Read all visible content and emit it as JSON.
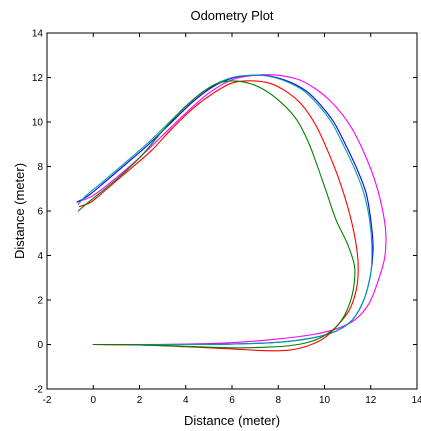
{
  "chart_data": {
    "type": "line",
    "title": "Odometry Plot",
    "xlabel": "Distance (meter)",
    "ylabel": "Distance (meter)",
    "xlim": [
      -2,
      14
    ],
    "ylim": [
      -2,
      14
    ],
    "xticks": [
      -2,
      0,
      2,
      4,
      6,
      8,
      10,
      12,
      14
    ],
    "yticks": [
      -2,
      0,
      2,
      4,
      6,
      8,
      10,
      12,
      14
    ],
    "grid": false,
    "series": [
      {
        "color": "#ff00ff",
        "x": [
          0,
          2,
          4,
          6,
          8,
          9.5,
          10.5,
          11.3,
          11.9,
          12.3,
          12.6,
          12.65,
          12.5,
          12.2,
          11.8,
          11.3,
          10.8,
          10.2,
          9.6,
          8.9,
          8.0,
          7.0,
          6.0,
          5.0,
          4.0,
          3.0,
          2.0,
          1.0,
          0,
          -0.7
        ],
        "y": [
          0,
          0,
          0.02,
          0.08,
          0.25,
          0.45,
          0.7,
          1.1,
          1.8,
          2.8,
          3.9,
          5.0,
          6.1,
          7.3,
          8.4,
          9.5,
          10.3,
          11.0,
          11.5,
          11.9,
          12.1,
          12.1,
          11.9,
          11.3,
          10.4,
          9.4,
          8.4,
          7.5,
          6.7,
          6.4
        ]
      },
      {
        "color": "#0000ff",
        "x": [
          0,
          2,
          4,
          6,
          8,
          9.5,
          10.5,
          11.2,
          11.7,
          12.0,
          12.1,
          12.0,
          11.8,
          11.4,
          10.9,
          10.4,
          9.8,
          9.2,
          8.5,
          7.7,
          6.9,
          6.1,
          5.2,
          4.3,
          3.4,
          2.4,
          1.4,
          0.5,
          -0.2,
          -0.7
        ],
        "y": [
          0,
          0,
          0,
          0.02,
          0.1,
          0.3,
          0.6,
          1.1,
          2.0,
          3.2,
          4.4,
          5.6,
          6.8,
          7.9,
          9.0,
          10.0,
          10.8,
          11.4,
          11.8,
          12.05,
          12.1,
          12.0,
          11.6,
          10.9,
          10.0,
          9.0,
          8.1,
          7.3,
          6.7,
          6.4
        ]
      },
      {
        "color": "#00a0a0",
        "x": [
          0,
          2,
          4,
          6,
          8,
          9.5,
          10.5,
          11.2,
          11.7,
          12.0,
          12.05,
          11.95,
          11.7,
          11.3,
          10.8,
          10.3,
          9.7,
          9.1,
          8.4,
          7.6,
          6.8,
          6.0,
          5.1,
          4.2,
          3.3,
          2.3,
          1.3,
          0.4,
          -0.3,
          -0.65
        ],
        "y": [
          0,
          0,
          0,
          0.02,
          0.1,
          0.3,
          0.6,
          1.1,
          2.0,
          3.2,
          4.4,
          5.6,
          6.8,
          7.9,
          9.0,
          10.0,
          10.8,
          11.4,
          11.8,
          12.05,
          12.1,
          12.0,
          11.6,
          10.9,
          10.0,
          9.0,
          8.1,
          7.3,
          6.7,
          6.3
        ]
      },
      {
        "color": "#ff0000",
        "x": [
          0,
          2,
          4,
          6,
          7.5,
          8.5,
          9.3,
          10.0,
          10.6,
          11.1,
          11.4,
          11.45,
          11.3,
          11.0,
          10.6,
          10.1,
          9.6,
          9.0,
          8.3,
          7.6,
          6.8,
          6.0,
          5.2,
          4.3,
          3.4,
          2.5,
          1.5,
          0.6,
          -0.1,
          -0.6
        ],
        "y": [
          0,
          -0.02,
          -0.1,
          -0.2,
          -0.28,
          -0.25,
          -0.05,
          0.3,
          0.9,
          1.6,
          2.6,
          3.7,
          4.9,
          6.2,
          7.5,
          8.8,
          9.9,
          10.8,
          11.4,
          11.75,
          11.85,
          11.75,
          11.3,
          10.6,
          9.7,
          8.7,
          7.8,
          7.0,
          6.4,
          6.2
        ]
      },
      {
        "color": "#008000",
        "x": [
          0,
          2,
          4,
          6,
          7.5,
          8.5,
          9.3,
          10.0,
          10.6,
          11.0,
          11.25,
          11.3,
          11.0,
          10.5,
          10.1,
          9.7,
          9.3,
          8.8,
          8.1,
          7.3,
          6.5,
          5.6,
          4.8,
          3.9,
          3.0,
          2.1,
          1.2,
          0.4,
          -0.2,
          -0.65
        ],
        "y": [
          0,
          -0.02,
          -0.08,
          -0.15,
          -0.12,
          -0.05,
          0.1,
          0.4,
          0.9,
          1.6,
          2.5,
          3.5,
          4.5,
          5.6,
          6.8,
          8.0,
          9.1,
          10.1,
          10.9,
          11.5,
          11.8,
          11.8,
          11.4,
          10.6,
          9.6,
          8.5,
          7.6,
          6.9,
          6.4,
          6.0
        ]
      }
    ]
  }
}
